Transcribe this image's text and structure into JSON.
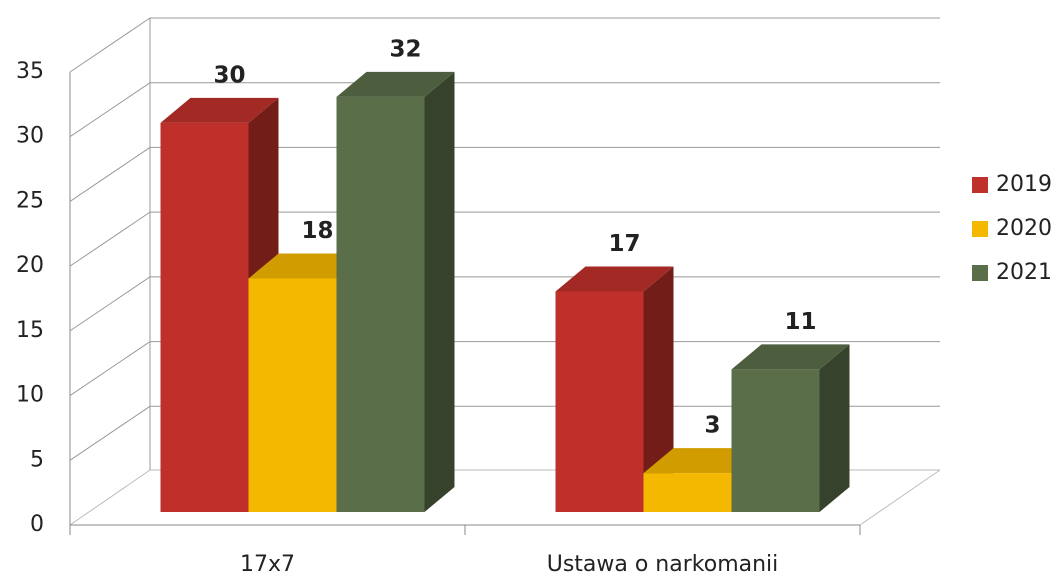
{
  "chart_data": {
    "type": "bar3d",
    "categories": [
      "17x7",
      "Ustawa o narkomanii"
    ],
    "series": [
      {
        "name": "2019",
        "color": "#c0302a",
        "values": [
          30,
          17
        ]
      },
      {
        "name": "2020",
        "color": "#f5b800",
        "values": [
          18,
          3
        ]
      },
      {
        "name": "2021",
        "color": "#5a6e4a",
        "values": [
          32,
          11
        ]
      }
    ],
    "ylim": [
      0,
      35
    ],
    "yticks": [
      0,
      5,
      10,
      15,
      20,
      25,
      30,
      35
    ],
    "grid": true,
    "legend": "right"
  }
}
